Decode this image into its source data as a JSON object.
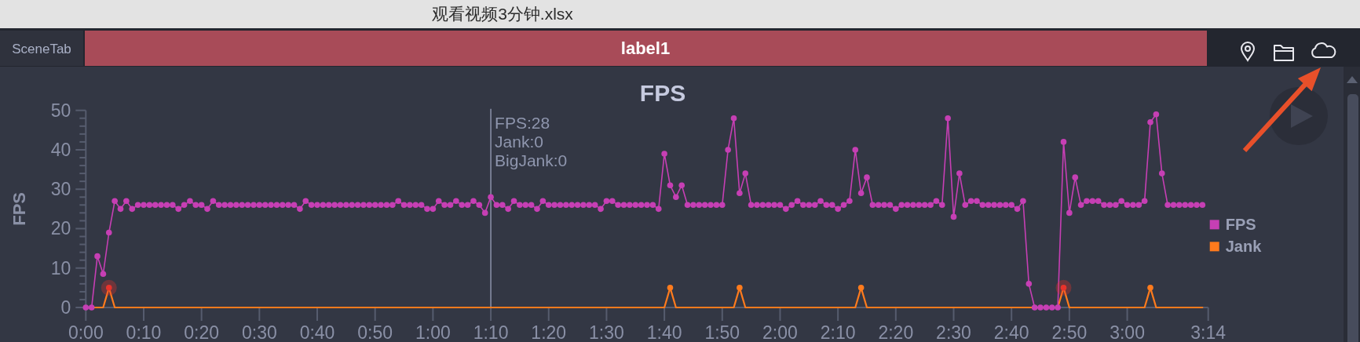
{
  "chart_data": {
    "type": "line",
    "title": "FPS",
    "ylabel": "FPS",
    "x": [
      0,
      1,
      2,
      3,
      4,
      5,
      6,
      7,
      8,
      9,
      10,
      11,
      12,
      13,
      14,
      15,
      16,
      17,
      18,
      19,
      20,
      21,
      22,
      23,
      24,
      25,
      26,
      27,
      28,
      29,
      30,
      31,
      32,
      33,
      34,
      35,
      36,
      37,
      38,
      39,
      40,
      41,
      42,
      43,
      44,
      45,
      46,
      47,
      48,
      49,
      50,
      51,
      52,
      53,
      54,
      55,
      56,
      57,
      58,
      59,
      60,
      61,
      62,
      63,
      64,
      65,
      66,
      67,
      68,
      69,
      70,
      71,
      72,
      73,
      74,
      75,
      76,
      77,
      78,
      79,
      80,
      81,
      82,
      83,
      84,
      85,
      86,
      87,
      88,
      89,
      90,
      91,
      92,
      93,
      94,
      95,
      96,
      97,
      98,
      99,
      100,
      101,
      102,
      103,
      104,
      105,
      106,
      107,
      108,
      109,
      110,
      111,
      112,
      113,
      114,
      115,
      116,
      117,
      118,
      119,
      120,
      121,
      122,
      123,
      124,
      125,
      126,
      127,
      128,
      129,
      130,
      131,
      132,
      133,
      134,
      135,
      136,
      137,
      138,
      139,
      140,
      141,
      142,
      143,
      144,
      145,
      146,
      147,
      148,
      149,
      150,
      151,
      152,
      153,
      154,
      155,
      156,
      157,
      158,
      159,
      160,
      161,
      162,
      163,
      164,
      165,
      166,
      167,
      168,
      169,
      170,
      171,
      172,
      173,
      174,
      175,
      176,
      177,
      178,
      179,
      180,
      181,
      182,
      183,
      184,
      185,
      186,
      187,
      188,
      189,
      190,
      191,
      192,
      193
    ],
    "series": [
      {
        "name": "FPS",
        "color": "#c63fb4",
        "marker": "circle",
        "values": [
          0,
          0,
          13,
          8.5,
          19,
          27,
          25,
          27,
          25,
          26,
          26,
          26,
          26,
          26,
          26,
          26,
          25,
          26,
          27,
          26,
          26,
          25,
          27,
          26,
          26,
          26,
          26,
          26,
          26,
          26,
          26,
          26,
          26,
          26,
          26,
          26,
          26,
          25,
          27,
          26,
          26,
          26,
          26,
          26,
          26,
          26,
          26,
          26,
          26,
          26,
          26,
          26,
          26,
          26,
          27,
          26,
          26,
          26,
          26,
          25,
          25,
          27,
          26,
          26,
          27,
          26,
          26,
          27,
          26,
          24,
          28,
          26,
          26,
          25,
          27,
          26,
          26,
          26,
          25,
          27,
          26,
          26,
          26,
          26,
          26,
          26,
          26,
          26,
          26,
          25,
          27,
          27,
          26,
          26,
          26,
          26,
          26,
          26,
          26,
          25,
          39,
          31,
          28,
          31,
          26,
          26,
          26,
          26,
          26,
          26,
          26,
          40,
          48,
          29,
          34,
          26,
          26,
          26,
          26,
          26,
          26,
          25,
          26,
          27,
          26,
          26,
          26,
          27,
          26,
          26,
          25,
          26,
          27,
          40,
          29,
          33,
          26,
          26,
          26,
          26,
          25,
          26,
          26,
          26,
          26,
          26,
          26,
          27,
          26,
          48,
          23,
          34,
          26,
          27,
          27,
          26,
          26,
          26,
          26,
          26,
          26,
          25,
          27,
          6,
          0,
          0,
          0,
          0,
          0,
          42,
          24,
          33,
          26,
          27,
          27,
          27,
          26,
          26,
          26,
          27,
          26,
          26,
          26,
          27,
          47,
          49,
          34,
          26,
          26,
          26,
          26,
          26,
          26,
          26
        ]
      },
      {
        "name": "Jank",
        "color": "#ff7b1d",
        "marker": "none",
        "values": [
          0,
          0,
          0,
          0,
          5,
          0,
          0,
          0,
          0,
          0,
          0,
          0,
          0,
          0,
          0,
          0,
          0,
          0,
          0,
          0,
          0,
          0,
          0,
          0,
          0,
          0,
          0,
          0,
          0,
          0,
          0,
          0,
          0,
          0,
          0,
          0,
          0,
          0,
          0,
          0,
          0,
          0,
          0,
          0,
          0,
          0,
          0,
          0,
          0,
          0,
          0,
          0,
          0,
          0,
          0,
          0,
          0,
          0,
          0,
          0,
          0,
          0,
          0,
          0,
          0,
          0,
          0,
          0,
          0,
          0,
          0,
          0,
          0,
          0,
          0,
          0,
          0,
          0,
          0,
          0,
          0,
          0,
          0,
          0,
          0,
          0,
          0,
          0,
          0,
          0,
          0,
          0,
          0,
          0,
          0,
          0,
          0,
          0,
          0,
          0,
          0,
          5,
          0,
          0,
          0,
          0,
          0,
          0,
          0,
          0,
          0,
          0,
          0,
          5,
          0,
          0,
          0,
          0,
          0,
          0,
          0,
          0,
          0,
          0,
          0,
          0,
          0,
          0,
          0,
          0,
          0,
          0,
          0,
          0,
          5,
          0,
          0,
          0,
          0,
          0,
          0,
          0,
          0,
          0,
          0,
          0,
          0,
          0,
          0,
          0,
          0,
          0,
          0,
          0,
          0,
          0,
          0,
          0,
          0,
          0,
          0,
          0,
          0,
          0,
          0,
          0,
          0,
          0,
          0,
          5,
          0,
          0,
          0,
          0,
          0,
          0,
          0,
          0,
          0,
          0,
          0,
          0,
          0,
          0,
          5,
          0,
          0,
          0,
          0,
          0,
          0,
          0,
          0,
          0
        ]
      },
      {
        "type": "scatter",
        "color": "#ff7b1d",
        "marker": "circle",
        "x": [
          101,
          113,
          134,
          184
        ],
        "values": [
          5,
          5,
          5,
          5
        ]
      },
      {
        "type": "bubble",
        "color": "#e8332c",
        "x": [
          4,
          169
        ],
        "values": [
          5,
          5
        ],
        "sizes": [
          1,
          1
        ]
      }
    ],
    "xlim": [
      0,
      194
    ],
    "xticks": [
      {
        "value": 0,
        "label": "0:00"
      },
      {
        "value": 10,
        "label": "0:10"
      },
      {
        "value": 20,
        "label": "0:20"
      },
      {
        "value": 30,
        "label": "0:30"
      },
      {
        "value": 40,
        "label": "0:40"
      },
      {
        "value": 50,
        "label": "0:50"
      },
      {
        "value": 60,
        "label": "1:00"
      },
      {
        "value": 70,
        "label": "1:10"
      },
      {
        "value": 80,
        "label": "1:20"
      },
      {
        "value": 90,
        "label": "1:30"
      },
      {
        "value": 100,
        "label": "1:40"
      },
      {
        "value": 110,
        "label": "1:50"
      },
      {
        "value": 120,
        "label": "2:00"
      },
      {
        "value": 130,
        "label": "2:10"
      },
      {
        "value": 140,
        "label": "2:20"
      },
      {
        "value": 150,
        "label": "2:30"
      },
      {
        "value": 160,
        "label": "2:40"
      },
      {
        "value": 170,
        "label": "2:50"
      },
      {
        "value": 180,
        "label": "3:00"
      },
      {
        "value": 194,
        "label": "3:14"
      }
    ],
    "ylim": [
      0,
      50
    ],
    "yticks": [
      0,
      {
        "value": 2,
        "label": null
      },
      {
        "value": 4,
        "label": null
      },
      {
        "value": 6,
        "label": null
      },
      {
        "value": 8,
        "label": null
      },
      10,
      {
        "value": 12,
        "label": null
      },
      {
        "value": 14,
        "label": null
      },
      {
        "value": 16,
        "label": null
      },
      {
        "value": 18,
        "label": null
      },
      20,
      {
        "value": 22,
        "label": null
      },
      {
        "value": 24,
        "label": null
      },
      {
        "value": 26,
        "label": null
      },
      {
        "value": 28,
        "label": null
      },
      30,
      {
        "value": 32,
        "label": null
      },
      {
        "value": 34,
        "label": null
      },
      {
        "value": 36,
        "label": null
      },
      {
        "value": 38,
        "label": null
      },
      40,
      {
        "value": 42,
        "label": null
      },
      {
        "value": 44,
        "label": null
      },
      {
        "value": 46,
        "label": null
      },
      {
        "value": 48,
        "label": null
      },
      50
    ],
    "legend": "right",
    "ref_lines": [
      {
        "axis": "x",
        "value": 70,
        "color": "#8c93ab"
      }
    ],
    "annotations": [
      "观看视频3分钟.xlsx",
      "SceneTab",
      "label1",
      {
        "text": "FPS:28\nJank:0\nBigJank:0",
        "x": 70,
        "y": 28
      }
    ]
  }
}
